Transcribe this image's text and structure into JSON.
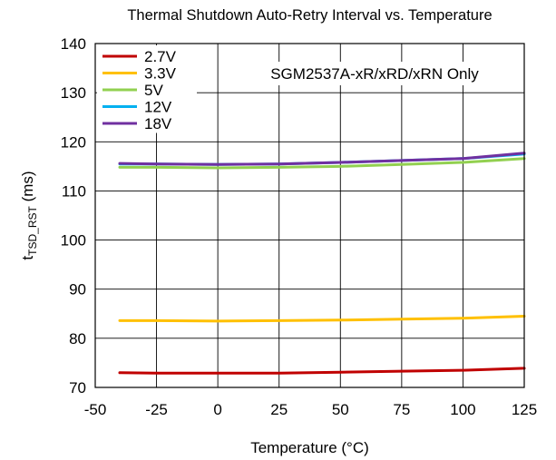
{
  "chart_data": {
    "type": "line",
    "title": "Thermal Shutdown Auto-Retry Interval vs. Temperature",
    "xlabel": "Temperature (°C)",
    "ylabel": {
      "main": "t",
      "sub": "TSD_RST",
      "unit": " (ms)"
    },
    "annotation": "SGM2537A-xR/xRD/xRN Only",
    "xlim": [
      -50,
      125
    ],
    "ylim": [
      70,
      140
    ],
    "xticks": [
      -50,
      -25,
      0,
      25,
      50,
      75,
      100,
      125
    ],
    "yticks": [
      70,
      80,
      90,
      100,
      110,
      120,
      130,
      140
    ],
    "grid": true,
    "legend_position": "top-left",
    "x": [
      -40,
      -25,
      0,
      25,
      50,
      75,
      100,
      125
    ],
    "series": [
      {
        "name": "2.7V",
        "color": "#c00000",
        "values": [
          73.0,
          72.9,
          72.9,
          72.9,
          73.1,
          73.3,
          73.5,
          73.9
        ]
      },
      {
        "name": "3.3V",
        "color": "#ffc000",
        "values": [
          83.6,
          83.6,
          83.5,
          83.6,
          83.7,
          83.9,
          84.1,
          84.5
        ]
      },
      {
        "name": "5V",
        "color": "#92d050",
        "values": [
          114.8,
          114.8,
          114.7,
          114.8,
          115.0,
          115.4,
          115.8,
          116.6
        ]
      },
      {
        "name": "12V",
        "color": "#00b0f0",
        "values": [
          115.5,
          115.5,
          115.4,
          115.5,
          115.8,
          116.2,
          116.6,
          117.5
        ]
      },
      {
        "name": "18V",
        "color": "#7030a0",
        "values": [
          115.6,
          115.5,
          115.4,
          115.5,
          115.8,
          116.2,
          116.6,
          117.7
        ]
      }
    ]
  }
}
